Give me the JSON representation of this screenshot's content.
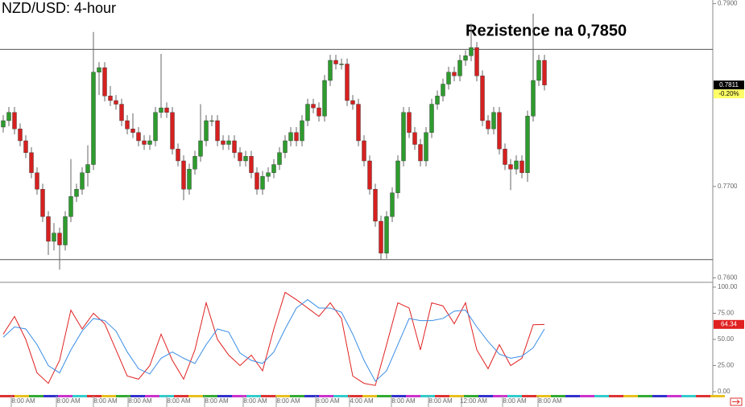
{
  "chart_data": [
    {
      "type": "candlestick",
      "title": "NZD/USD: 4-hour",
      "annotation": "Rezistence na 0,7850",
      "up_color": "#2e9b2e",
      "down_color": "#d62020",
      "ylim": [
        0.7596,
        0.7904
      ],
      "yticks": [
        {
          "value": 0.79,
          "label": "0.7900"
        },
        {
          "value": 0.77,
          "label": "0.7700"
        },
        {
          "value": 0.76,
          "label": "0.7600"
        }
      ],
      "levels": [
        0.785,
        0.762
      ],
      "last_price": {
        "value": 0.7811,
        "label": "0.7811"
      },
      "change_label": "-0.20%",
      "open": [
        0.7765,
        0.7772,
        0.7781,
        0.7763,
        0.775,
        0.7737,
        0.7715,
        0.7697,
        0.7667,
        0.764,
        0.7649,
        0.7636,
        0.7667,
        0.7689,
        0.7697,
        0.7715,
        0.7724,
        0.7825,
        0.783,
        0.7799,
        0.7794,
        0.779,
        0.7772,
        0.7763,
        0.7759,
        0.775,
        0.7746,
        0.775,
        0.7781,
        0.7786,
        0.7781,
        0.7741,
        0.7728,
        0.7697,
        0.7719,
        0.7733,
        0.775,
        0.7772,
        0.7772,
        0.775,
        0.7746,
        0.775,
        0.7737,
        0.7728,
        0.7733,
        0.7715,
        0.7697,
        0.7711,
        0.7715,
        0.7724,
        0.7737,
        0.775,
        0.7759,
        0.775,
        0.7772,
        0.779,
        0.7786,
        0.7777,
        0.7816,
        0.7838,
        0.7834,
        0.7834,
        0.7794,
        0.779,
        0.775,
        0.7728,
        0.7697,
        0.7662,
        0.7627,
        0.7667,
        0.7693,
        0.7728,
        0.7781,
        0.7759,
        0.7746,
        0.7728,
        0.7759,
        0.779,
        0.7799,
        0.7812,
        0.7825,
        0.7821,
        0.7838,
        0.7843,
        0.7852,
        0.7821,
        0.7772,
        0.7763,
        0.7781,
        0.7741,
        0.7724,
        0.7719,
        0.7728,
        0.7715,
        0.7777,
        0.7816,
        0.7838
      ],
      "high": [
        0.7778,
        0.7787,
        0.7787,
        0.7769,
        0.7756,
        0.7743,
        0.7721,
        0.7703,
        0.7673,
        0.766,
        0.7655,
        0.7673,
        0.773,
        0.7703,
        0.7721,
        0.7745,
        0.7869,
        0.7836,
        0.7836,
        0.781,
        0.78,
        0.7796,
        0.7778,
        0.778,
        0.7765,
        0.7756,
        0.7756,
        0.7787,
        0.7845,
        0.7792,
        0.7787,
        0.7747,
        0.7734,
        0.7725,
        0.7739,
        0.779,
        0.7778,
        0.7778,
        0.7778,
        0.7756,
        0.7756,
        0.7756,
        0.7743,
        0.7739,
        0.7739,
        0.7721,
        0.7717,
        0.7721,
        0.773,
        0.7743,
        0.7756,
        0.7765,
        0.7765,
        0.7778,
        0.7796,
        0.7796,
        0.7792,
        0.7822,
        0.7844,
        0.7844,
        0.784,
        0.784,
        0.78,
        0.7796,
        0.7756,
        0.7734,
        0.7703,
        0.7668,
        0.7673,
        0.7699,
        0.7734,
        0.7787,
        0.7787,
        0.7765,
        0.7752,
        0.7765,
        0.7796,
        0.7805,
        0.7818,
        0.7831,
        0.7831,
        0.7844,
        0.7849,
        0.7878,
        0.7858,
        0.7827,
        0.7778,
        0.7787,
        0.7787,
        0.7747,
        0.773,
        0.7734,
        0.7734,
        0.7783,
        0.7889,
        0.7844,
        0.7844
      ],
      "low": [
        0.7759,
        0.7766,
        0.7757,
        0.7744,
        0.7731,
        0.7709,
        0.7691,
        0.7661,
        0.7625,
        0.763,
        0.7609,
        0.763,
        0.7661,
        0.7683,
        0.7691,
        0.77,
        0.7718,
        0.78,
        0.7793,
        0.7788,
        0.7784,
        0.7766,
        0.7757,
        0.7753,
        0.7744,
        0.774,
        0.774,
        0.7744,
        0.7775,
        0.7775,
        0.7735,
        0.7722,
        0.7685,
        0.7691,
        0.7713,
        0.7727,
        0.7744,
        0.7766,
        0.7744,
        0.774,
        0.774,
        0.7731,
        0.7722,
        0.7722,
        0.7709,
        0.7691,
        0.7691,
        0.7705,
        0.7709,
        0.7718,
        0.7731,
        0.7744,
        0.7744,
        0.7744,
        0.7766,
        0.778,
        0.7771,
        0.7771,
        0.781,
        0.7828,
        0.7828,
        0.7788,
        0.7784,
        0.7744,
        0.7722,
        0.7691,
        0.7656,
        0.762,
        0.7621,
        0.7661,
        0.7687,
        0.7722,
        0.7753,
        0.774,
        0.7722,
        0.7722,
        0.7753,
        0.7784,
        0.7793,
        0.7806,
        0.7815,
        0.7815,
        0.7832,
        0.7837,
        0.7815,
        0.7766,
        0.7757,
        0.7757,
        0.7735,
        0.7718,
        0.7696,
        0.7713,
        0.7709,
        0.7705,
        0.7771,
        0.781,
        0.7805
      ],
      "close": [
        0.7772,
        0.7781,
        0.7763,
        0.775,
        0.7737,
        0.7715,
        0.7697,
        0.7667,
        0.764,
        0.7649,
        0.7636,
        0.7667,
        0.7689,
        0.7697,
        0.7715,
        0.7724,
        0.7825,
        0.783,
        0.7799,
        0.7794,
        0.779,
        0.7772,
        0.7763,
        0.7759,
        0.775,
        0.7746,
        0.775,
        0.7781,
        0.7786,
        0.7781,
        0.7741,
        0.7728,
        0.7697,
        0.7719,
        0.7733,
        0.775,
        0.7772,
        0.7772,
        0.775,
        0.7746,
        0.775,
        0.7737,
        0.7728,
        0.7733,
        0.7715,
        0.7697,
        0.7711,
        0.7715,
        0.7724,
        0.7737,
        0.775,
        0.7759,
        0.775,
        0.7772,
        0.779,
        0.7786,
        0.7777,
        0.7816,
        0.7838,
        0.7834,
        0.7834,
        0.7794,
        0.779,
        0.775,
        0.7728,
        0.7697,
        0.7662,
        0.7627,
        0.7667,
        0.7693,
        0.7728,
        0.7781,
        0.7759,
        0.7746,
        0.7728,
        0.7759,
        0.779,
        0.7799,
        0.7812,
        0.7825,
        0.7821,
        0.7838,
        0.7843,
        0.7852,
        0.7821,
        0.7772,
        0.7763,
        0.7781,
        0.7741,
        0.7724,
        0.7719,
        0.7728,
        0.7715,
        0.7777,
        0.7816,
        0.7838,
        0.7811
      ]
    },
    {
      "type": "line",
      "ylim": [
        -2.3,
        103.8
      ],
      "yticks": [
        {
          "value": 100,
          "label": "100.00"
        },
        {
          "value": 75,
          "label": "75.00"
        },
        {
          "value": 50,
          "label": "50.00"
        },
        {
          "value": 25,
          "label": "25.00"
        },
        {
          "value": 0,
          "label": "0.00"
        }
      ],
      "last_value": {
        "value": 64.34,
        "label": "64.34"
      },
      "series": [
        {
          "color": "#e02020",
          "values": [
            55,
            72,
            50,
            18,
            8,
            30,
            78,
            60,
            75,
            65,
            40,
            15,
            12,
            25,
            55,
            30,
            12,
            40,
            85,
            50,
            35,
            25,
            35,
            20,
            60,
            95,
            88,
            80,
            72,
            85,
            70,
            15,
            8,
            6,
            45,
            85,
            80,
            40,
            85,
            82,
            65,
            85,
            40,
            22,
            45,
            25,
            32,
            64,
            64.34
          ]
        },
        {
          "color": "#3a8ee6",
          "values": [
            52,
            62,
            60,
            45,
            25,
            18,
            40,
            58,
            70,
            68,
            58,
            38,
            22,
            17,
            32,
            38,
            32,
            27,
            45,
            60,
            57,
            37,
            30,
            27,
            38,
            60,
            80,
            88,
            80,
            80,
            76,
            55,
            30,
            10,
            20,
            45,
            70,
            68,
            68,
            70,
            77,
            78,
            62,
            48,
            36,
            32,
            34,
            42,
            60
          ]
        }
      ],
      "time_labels": [
        "8:00 AM",
        "8:00 AM",
        "8:00 AM",
        "8:00 AM",
        "8:00 AM",
        "8:00 AM",
        "8:00 AM",
        "8:00 AM",
        "8:00 AM",
        "4:00 AM",
        "8:00 AM",
        "8:00 AM",
        "12:00 AM",
        "8:00 AM",
        "8:00 AM"
      ]
    }
  ]
}
